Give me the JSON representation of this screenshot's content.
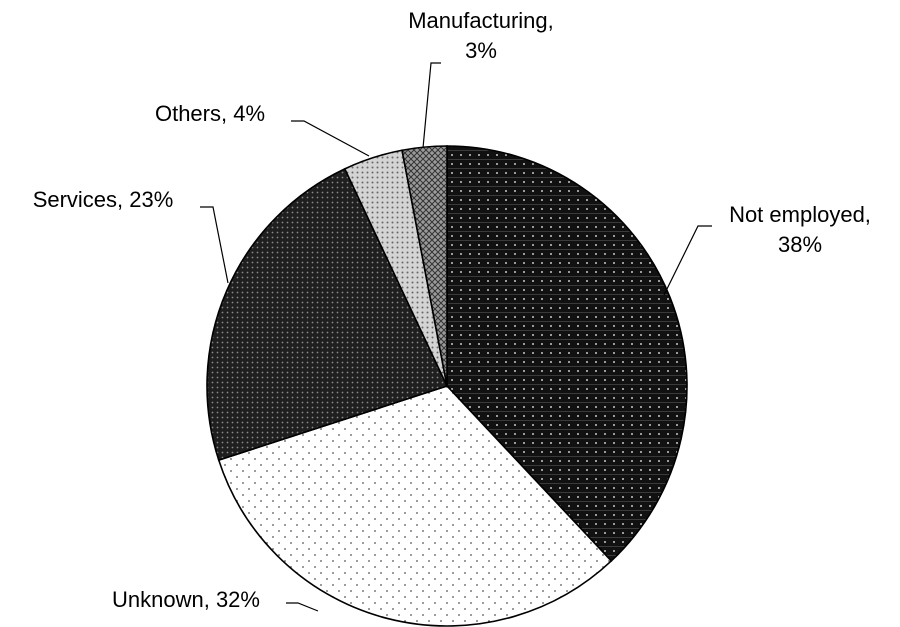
{
  "chart_data": {
    "type": "pie",
    "title": "",
    "slices": [
      {
        "category": "Not employed",
        "value": 38,
        "label": "Not employed,|38%",
        "pattern": "black-dots",
        "color": "#111111"
      },
      {
        "category": "Unknown",
        "value": 32,
        "label": "Unknown, 32%",
        "pattern": "white-dots",
        "color": "#ffffff"
      },
      {
        "category": "Services",
        "value": 23,
        "label": "Services, 23%",
        "pattern": "dark-grid",
        "color": "#2a2a2a"
      },
      {
        "category": "Others",
        "value": 4,
        "label": "Others, 4%",
        "pattern": "light-dots",
        "color": "#d8d8d8"
      },
      {
        "category": "Manufacturing",
        "value": 3,
        "label": "Manufacturing,|3%",
        "pattern": "crosshatch",
        "color": "#777777"
      }
    ],
    "start": "12 o'clock",
    "direction": "clockwise"
  }
}
